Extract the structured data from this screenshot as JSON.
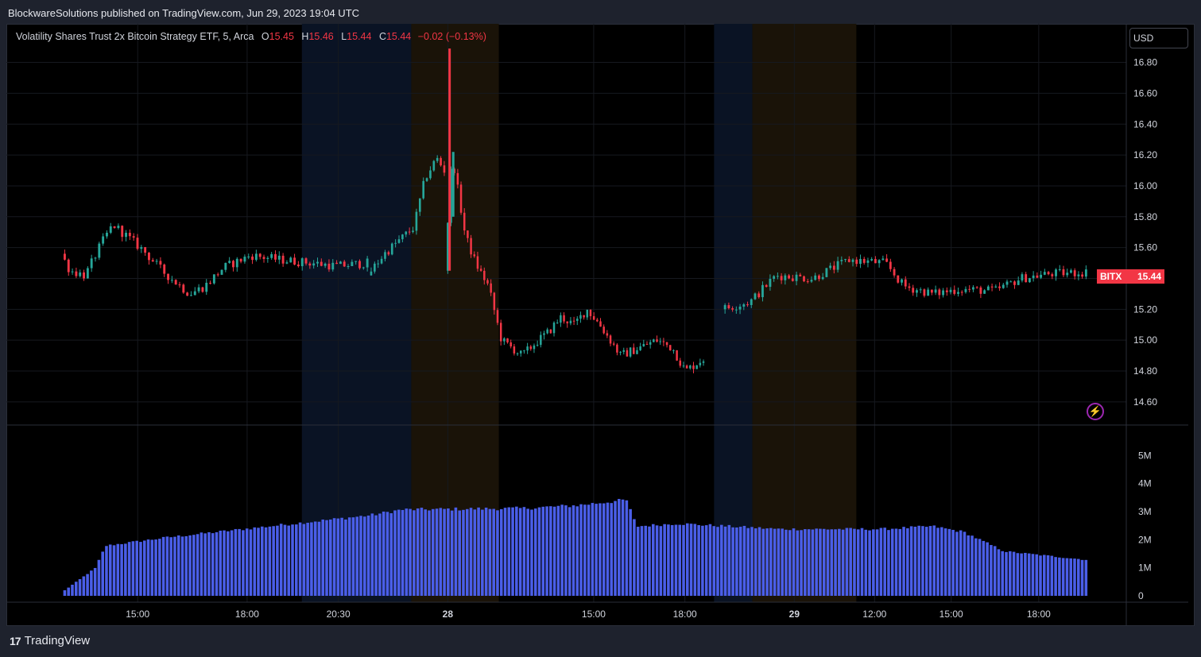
{
  "header": {
    "published_by": "BlockwareSolutions published on TradingView.com, Jun 29, 2023 19:04 UTC"
  },
  "legend": {
    "symbol": "Volatility Shares Trust 2x Bitcoin Strategy ETF, 5, Arca",
    "o_label": "O",
    "o_value": "15.45",
    "h_label": "H",
    "h_value": "15.46",
    "l_label": "L",
    "l_value": "15.44",
    "c_label": "C",
    "c_value": "15.44",
    "change": "−0.02 (−0.13%)"
  },
  "currency": "USD",
  "price_tag": {
    "ticker": "BITX",
    "value": "15.44"
  },
  "footer": {
    "brand": "TradingView"
  },
  "colors": {
    "up": "#26a69a",
    "down": "#f23645",
    "volume": "#4a5ee8",
    "premarket": "#0a1324",
    "afterhours": "#1a1308"
  },
  "icons": {
    "flash": "flash-icon",
    "logo": "tradingview-logo-icon"
  },
  "chart_data": {
    "type": "candlestick",
    "timeframe": "5",
    "price_axis": {
      "ticks": [
        "14.60",
        "14.80",
        "15.00",
        "15.20",
        "15.40",
        "15.60",
        "15.80",
        "16.00",
        "16.20",
        "16.40",
        "16.60",
        "16.80"
      ],
      "range": [
        14.45,
        17.05
      ]
    },
    "volume_axis": {
      "ticks": [
        "0",
        "1M",
        "2M",
        "3M",
        "4M",
        "5M"
      ],
      "range": [
        0,
        5800000
      ]
    },
    "time_axis": {
      "ticks": [
        {
          "label": "15:00",
          "t": 0.5
        },
        {
          "label": "18:00",
          "t": 3.5
        },
        {
          "label": "20:30",
          "t": 6
        },
        {
          "label": "28",
          "t": 9,
          "bold": true
        },
        {
          "label": "15:00",
          "t": 13
        },
        {
          "label": "18:00",
          "t": 15.5
        },
        {
          "label": "29",
          "t": 18.5,
          "bold": true
        },
        {
          "label": "12:00",
          "t": 20.7
        },
        {
          "label": "15:00",
          "t": 22.8
        },
        {
          "label": "18:00",
          "t": 25.2
        }
      ]
    },
    "sessions": [
      {
        "type": "premarket",
        "from": 5.0,
        "to": 8.0
      },
      {
        "type": "afterhours",
        "from": 8.0,
        "to": 10.4
      },
      {
        "type": "premarket",
        "from": 16.3,
        "to": 17.35
      },
      {
        "type": "afterhours",
        "from": 17.35,
        "to": 20.2
      }
    ],
    "segments": [
      {
        "t0": -1.5,
        "t1": 6.9,
        "n": 80,
        "start": 15.56,
        "path": [
          [
            0,
            15.56
          ],
          [
            0.03,
            15.45
          ],
          [
            0.08,
            15.42
          ],
          [
            0.13,
            15.62
          ],
          [
            0.17,
            15.75
          ],
          [
            0.27,
            15.58
          ],
          [
            0.33,
            15.45
          ],
          [
            0.42,
            15.3
          ],
          [
            0.47,
            15.35
          ],
          [
            0.53,
            15.47
          ],
          [
            0.62,
            15.55
          ],
          [
            0.72,
            15.52
          ],
          [
            0.82,
            15.5
          ],
          [
            0.9,
            15.48
          ],
          [
            1,
            15.5
          ]
        ]
      },
      {
        "t0": 6.9,
        "t1": 9.0,
        "n": 22,
        "start": 15.42,
        "path": [
          [
            0,
            15.42
          ],
          [
            0.2,
            15.55
          ],
          [
            0.35,
            15.62
          ],
          [
            0.6,
            15.73
          ],
          [
            0.75,
            16.05
          ],
          [
            0.9,
            16.18
          ],
          [
            1,
            16.1
          ]
        ]
      },
      {
        "t0": 9.0,
        "t1": 16.1,
        "n": 78,
        "start": 15.45,
        "path": [
          [
            0,
            15.45
          ],
          [
            0.03,
            16.2
          ],
          [
            0.08,
            15.68
          ],
          [
            0.12,
            15.5
          ],
          [
            0.17,
            15.35
          ],
          [
            0.22,
            15.0
          ],
          [
            0.3,
            14.9
          ],
          [
            0.35,
            14.98
          ],
          [
            0.4,
            15.05
          ],
          [
            0.45,
            15.15
          ],
          [
            0.5,
            15.1
          ],
          [
            0.55,
            15.2
          ],
          [
            0.6,
            15.1
          ],
          [
            0.68,
            14.9
          ],
          [
            0.75,
            14.95
          ],
          [
            0.82,
            15.0
          ],
          [
            0.88,
            14.95
          ],
          [
            0.93,
            14.8
          ],
          [
            1,
            14.88
          ]
        ]
      },
      {
        "t0": 16.6,
        "t1": 26.6,
        "n": 97,
        "start": 15.2,
        "path": [
          [
            0,
            15.2
          ],
          [
            0.08,
            15.25
          ],
          [
            0.15,
            15.42
          ],
          [
            0.25,
            15.4
          ],
          [
            0.35,
            15.52
          ],
          [
            0.45,
            15.5
          ],
          [
            0.5,
            15.35
          ],
          [
            0.58,
            15.3
          ],
          [
            0.65,
            15.33
          ],
          [
            0.75,
            15.32
          ],
          [
            0.82,
            15.4
          ],
          [
            0.9,
            15.43
          ],
          [
            1,
            15.44
          ]
        ]
      }
    ],
    "spikes": [
      {
        "t": 9.05,
        "high": 16.89,
        "low": 15.45
      },
      {
        "t": 9.15,
        "high": 16.22,
        "low": 15.8
      }
    ],
    "volume": {
      "t0": -1.5,
      "t1": 26.6,
      "n": 270,
      "path": [
        [
          0,
          200000
        ],
        [
          0.03,
          1000000
        ],
        [
          0.04,
          1800000
        ],
        [
          0.1,
          2100000
        ],
        [
          0.2,
          2500000
        ],
        [
          0.3,
          2900000
        ],
        [
          0.33,
          3100000
        ],
        [
          0.45,
          3150000
        ],
        [
          0.5,
          3250000
        ],
        [
          0.55,
          3450000
        ],
        [
          0.56,
          2500000
        ],
        [
          0.6,
          2600000
        ],
        [
          0.7,
          2400000
        ],
        [
          0.8,
          2400000
        ],
        [
          0.85,
          2500000
        ],
        [
          0.88,
          2300000
        ],
        [
          0.92,
          1600000
        ],
        [
          1,
          1300000
        ]
      ]
    }
  }
}
